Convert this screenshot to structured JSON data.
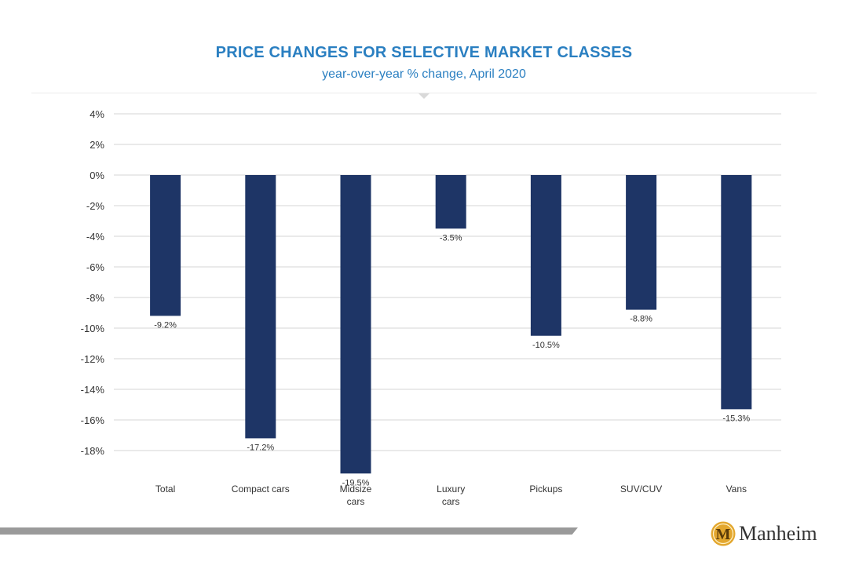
{
  "chart_data": {
    "type": "bar",
    "title": "PRICE CHANGES FOR SELECTIVE MARKET CLASSES",
    "subtitle": "year-over-year % change, April 2020",
    "categories": [
      "Total",
      "Compact cars",
      "Midsize cars",
      "Luxury cars",
      "Pickups",
      "SUV/CUV",
      "Vans"
    ],
    "category_lines": [
      [
        "Total"
      ],
      [
        "Compact cars"
      ],
      [
        "Midsize",
        "cars"
      ],
      [
        "Luxury",
        "cars"
      ],
      [
        "Pickups"
      ],
      [
        "SUV/CUV"
      ],
      [
        "Vans"
      ]
    ],
    "values": [
      -9.2,
      -17.2,
      -19.5,
      -3.5,
      -10.5,
      -8.8,
      -15.3
    ],
    "data_labels": [
      "-9.2%",
      "-17.2%",
      "-19.5%",
      "-3.5%",
      "-10.5%",
      "-8.8%",
      "-15.3%"
    ],
    "y_ticks": [
      4,
      2,
      0,
      -2,
      -4,
      -6,
      -8,
      -10,
      -12,
      -14,
      -16,
      -18
    ],
    "y_tick_labels": [
      "4%",
      "2%",
      "0%",
      "-2%",
      "-4%",
      "-6%",
      "-8%",
      "-10%",
      "-12%",
      "-14%",
      "-16%",
      "-18%"
    ],
    "ylim": [
      -19.5,
      4
    ],
    "xlabel": "",
    "ylabel": "",
    "grid": true,
    "legend": "none",
    "bar_color": "#1e3566",
    "title_color": "#2a7fc1"
  },
  "brand": {
    "name": "Manheim",
    "logo_icon": "manheim-m-seal-icon",
    "logo_letter": "M",
    "logo_color": "#e3a72f"
  },
  "colors": {
    "footer_bar": "#9a9a9a",
    "grid": "#d6d6d6"
  }
}
